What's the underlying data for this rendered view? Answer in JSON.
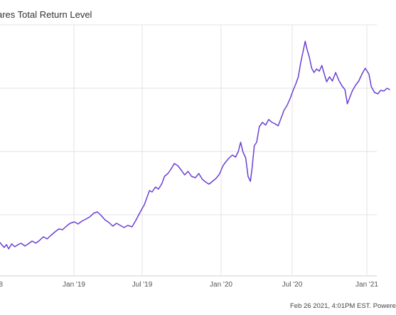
{
  "chart_data": {
    "type": "line",
    "title": "ares Total Return Level",
    "xlabel": "",
    "ylabel": "",
    "x_tick_labels": [
      "Jan '19",
      "Jul '19",
      "Jan '20",
      "Jul '20",
      "Jan '21"
    ],
    "edge_tick_label": "8",
    "grid": true,
    "legend": "none",
    "series": [
      {
        "color": "#6a3fd4",
        "points": [
          [
            "2018-05-28",
            331
          ],
          [
            "2018-06-10",
            335
          ],
          [
            "2018-06-20",
            342
          ],
          [
            "2018-06-30",
            348
          ],
          [
            "2018-07-06",
            344
          ],
          [
            "2018-07-12",
            350
          ],
          [
            "2018-07-20",
            343
          ],
          [
            "2018-07-28",
            347
          ],
          [
            "2018-08-06",
            344
          ],
          [
            "2018-08-14",
            342
          ],
          [
            "2018-08-24",
            346
          ],
          [
            "2018-09-02",
            343
          ],
          [
            "2018-09-12",
            339
          ],
          [
            "2018-09-22",
            342
          ],
          [
            "2018-10-02",
            338
          ],
          [
            "2018-10-12",
            333
          ],
          [
            "2018-10-22",
            336
          ],
          [
            "2018-11-01",
            331
          ],
          [
            "2018-11-12",
            326
          ],
          [
            "2018-11-22",
            322
          ],
          [
            "2018-12-02",
            323
          ],
          [
            "2018-12-12",
            318
          ],
          [
            "2018-12-22",
            314
          ],
          [
            "2019-01-02",
            312
          ],
          [
            "2019-01-12",
            315
          ],
          [
            "2019-01-22",
            311
          ],
          [
            "2019-02-02",
            308
          ],
          [
            "2019-02-12",
            305
          ],
          [
            "2019-02-22",
            300
          ],
          [
            "2019-03-04",
            298
          ],
          [
            "2019-03-14",
            303
          ],
          [
            "2019-03-24",
            309
          ],
          [
            "2019-04-04",
            313
          ],
          [
            "2019-04-14",
            318
          ],
          [
            "2019-04-24",
            314
          ],
          [
            "2019-05-04",
            317
          ],
          [
            "2019-05-14",
            320
          ],
          [
            "2019-05-24",
            317
          ],
          [
            "2019-06-04",
            319
          ],
          [
            "2019-06-14",
            310
          ],
          [
            "2019-06-22",
            302
          ],
          [
            "2019-06-30",
            294
          ],
          [
            "2019-07-06",
            288
          ],
          [
            "2019-07-12",
            278
          ],
          [
            "2019-07-18",
            268
          ],
          [
            "2019-07-24",
            270
          ],
          [
            "2019-08-01",
            263
          ],
          [
            "2019-08-08",
            266
          ],
          [
            "2019-08-16",
            258
          ],
          [
            "2019-08-22",
            248
          ],
          [
            "2019-08-30",
            244
          ],
          [
            "2019-09-06",
            238
          ],
          [
            "2019-09-14",
            230
          ],
          [
            "2019-09-22",
            233
          ],
          [
            "2019-10-01",
            240
          ],
          [
            "2019-10-08",
            246
          ],
          [
            "2019-10-16",
            241
          ],
          [
            "2019-10-24",
            248
          ],
          [
            "2019-11-02",
            250
          ],
          [
            "2019-11-10",
            244
          ],
          [
            "2019-11-18",
            252
          ],
          [
            "2019-11-26",
            256
          ],
          [
            "2019-12-04",
            259
          ],
          [
            "2019-12-12",
            255
          ],
          [
            "2019-12-20",
            251
          ],
          [
            "2019-12-28",
            245
          ],
          [
            "2020-01-06",
            233
          ],
          [
            "2020-01-14",
            227
          ],
          [
            "2020-01-22",
            222
          ],
          [
            "2020-01-30",
            218
          ],
          [
            "2020-02-07",
            221
          ],
          [
            "2020-02-14",
            213
          ],
          [
            "2020-02-20",
            200
          ],
          [
            "2020-02-26",
            214
          ],
          [
            "2020-03-04",
            222
          ],
          [
            "2020-03-10",
            248
          ],
          [
            "2020-03-16",
            255
          ],
          [
            "2020-03-20",
            238
          ],
          [
            "2020-03-26",
            205
          ],
          [
            "2020-04-01",
            200
          ],
          [
            "2020-04-08",
            178
          ],
          [
            "2020-04-16",
            172
          ],
          [
            "2020-04-24",
            176
          ],
          [
            "2020-05-02",
            168
          ],
          [
            "2020-05-10",
            172
          ],
          [
            "2020-05-18",
            174
          ],
          [
            "2020-05-26",
            177
          ],
          [
            "2020-06-02",
            167
          ],
          [
            "2020-06-10",
            155
          ],
          [
            "2020-06-18",
            148
          ],
          [
            "2020-06-26",
            138
          ],
          [
            "2020-07-04",
            126
          ],
          [
            "2020-07-10",
            118
          ],
          [
            "2020-07-16",
            108
          ],
          [
            "2020-07-22",
            88
          ],
          [
            "2020-07-28",
            72
          ],
          [
            "2020-08-02",
            58
          ],
          [
            "2020-08-06",
            68
          ],
          [
            "2020-08-12",
            80
          ],
          [
            "2020-08-18",
            96
          ],
          [
            "2020-08-24",
            102
          ],
          [
            "2020-08-30",
            97
          ],
          [
            "2020-09-06",
            100
          ],
          [
            "2020-09-12",
            92
          ],
          [
            "2020-09-18",
            104
          ],
          [
            "2020-09-24",
            115
          ],
          [
            "2020-10-01",
            108
          ],
          [
            "2020-10-08",
            114
          ],
          [
            "2020-10-16",
            102
          ],
          [
            "2020-10-24",
            113
          ],
          [
            "2020-11-01",
            121
          ],
          [
            "2020-11-08",
            126
          ],
          [
            "2020-11-14",
            146
          ],
          [
            "2020-11-20",
            137
          ],
          [
            "2020-11-26",
            128
          ],
          [
            "2020-12-04",
            120
          ],
          [
            "2020-12-12",
            114
          ],
          [
            "2020-12-20",
            104
          ],
          [
            "2020-12-28",
            96
          ],
          [
            "2021-01-06",
            104
          ],
          [
            "2021-01-12",
            122
          ],
          [
            "2021-01-20",
            130
          ],
          [
            "2021-01-28",
            132
          ],
          [
            "2021-02-04",
            127
          ],
          [
            "2021-02-12",
            128
          ],
          [
            "2021-02-20",
            124
          ],
          [
            "2021-02-26",
            126
          ]
        ]
      }
    ]
  },
  "footer": {
    "note": "Feb 26 2021, 4:01PM EST. Powere"
  },
  "colors": {
    "line": "#6a3fd4",
    "grid": "#e3e3e3",
    "text": "#555555"
  }
}
